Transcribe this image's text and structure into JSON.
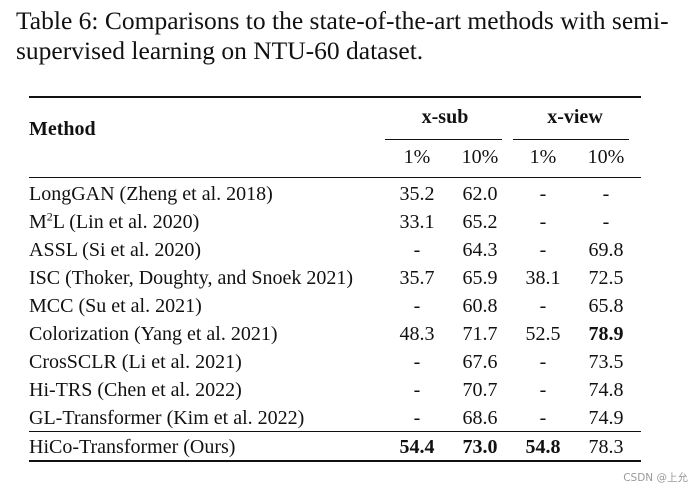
{
  "caption": "Table 6: Comparisons to the state-of-the-art methods with semi-supervised learning on NTU-60 dataset.",
  "table": {
    "header": {
      "method": "Method",
      "groups": [
        {
          "label": "x-sub",
          "subcols": [
            "1%",
            "10%"
          ]
        },
        {
          "label": "x-view",
          "subcols": [
            "1%",
            "10%"
          ]
        }
      ]
    },
    "rows": [
      {
        "method": "LongGAN (Zheng et al. 2018)",
        "values": [
          "35.2",
          "62.0",
          "-",
          "-"
        ],
        "bold": [
          false,
          false,
          false,
          false
        ]
      },
      {
        "method_pre": "M",
        "method_sup": "2",
        "method_post": "L (Lin et al. 2020)",
        "method": "M2L (Lin et al. 2020)",
        "values": [
          "33.1",
          "65.2",
          "-",
          "-"
        ],
        "bold": [
          false,
          false,
          false,
          false
        ]
      },
      {
        "method": "ASSL (Si et al. 2020)",
        "values": [
          "-",
          "64.3",
          "-",
          "69.8"
        ],
        "bold": [
          false,
          false,
          false,
          false
        ]
      },
      {
        "method": "ISC (Thoker, Doughty, and Snoek 2021)",
        "values": [
          "35.7",
          "65.9",
          "38.1",
          "72.5"
        ],
        "bold": [
          false,
          false,
          false,
          false
        ]
      },
      {
        "method": "MCC (Su et al. 2021)",
        "values": [
          "-",
          "60.8",
          "-",
          "65.8"
        ],
        "bold": [
          false,
          false,
          false,
          false
        ]
      },
      {
        "method": "Colorization (Yang et al. 2021)",
        "values": [
          "48.3",
          "71.7",
          "52.5",
          "78.9"
        ],
        "bold": [
          false,
          false,
          false,
          true
        ]
      },
      {
        "method": "CrosSCLR (Li et al. 2021)",
        "values": [
          "-",
          "67.6",
          "-",
          "73.5"
        ],
        "bold": [
          false,
          false,
          false,
          false
        ]
      },
      {
        "method": "Hi-TRS (Chen et al. 2022)",
        "values": [
          "-",
          "70.7",
          "-",
          "74.8"
        ],
        "bold": [
          false,
          false,
          false,
          false
        ]
      },
      {
        "method": "GL-Transformer (Kim et al. 2022)",
        "values": [
          "-",
          "68.6",
          "-",
          "74.9"
        ],
        "bold": [
          false,
          false,
          false,
          false
        ]
      },
      {
        "method": "HiCo-Transformer (Ours)",
        "values": [
          "54.4",
          "73.0",
          "54.8",
          "78.3"
        ],
        "bold": [
          true,
          true,
          true,
          false
        ]
      }
    ]
  },
  "watermark": "CSDN @上允"
}
